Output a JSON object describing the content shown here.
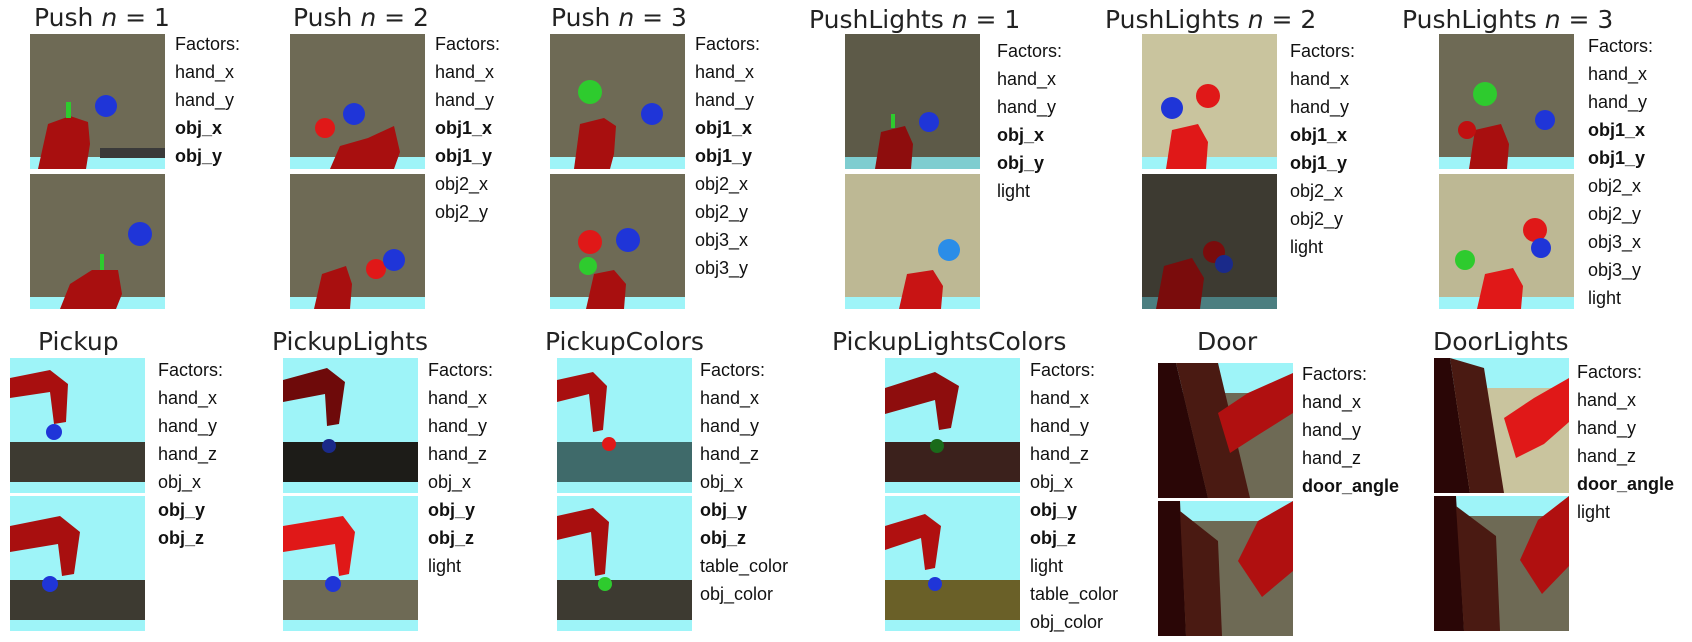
{
  "factors_label": "Factors:",
  "row1": [
    {
      "title": "Push",
      "n": "1",
      "factors": [
        {
          "t": "hand_x",
          "b": false
        },
        {
          "t": "hand_y",
          "b": false
        },
        {
          "t": "obj_x",
          "b": true
        },
        {
          "t": "obj_y",
          "b": true
        }
      ]
    },
    {
      "title": "Push",
      "n": "2",
      "factors": [
        {
          "t": "hand_x",
          "b": false
        },
        {
          "t": "hand_y",
          "b": false
        },
        {
          "t": "obj1_x",
          "b": true
        },
        {
          "t": "obj1_y",
          "b": true
        },
        {
          "t": "obj2_x",
          "b": false
        },
        {
          "t": "obj2_y",
          "b": false
        }
      ]
    },
    {
      "title": "Push",
      "n": "3",
      "factors": [
        {
          "t": "hand_x",
          "b": false
        },
        {
          "t": "hand_y",
          "b": false
        },
        {
          "t": "obj1_x",
          "b": true
        },
        {
          "t": "obj1_y",
          "b": true
        },
        {
          "t": "obj2_x",
          "b": false
        },
        {
          "t": "obj2_y",
          "b": false
        },
        {
          "t": "obj3_x",
          "b": false
        },
        {
          "t": "obj3_y",
          "b": false
        }
      ]
    },
    {
      "title": "PushLights",
      "n": "1",
      "factors": [
        {
          "t": "hand_x",
          "b": false
        },
        {
          "t": "hand_y",
          "b": false
        },
        {
          "t": "obj_x",
          "b": true
        },
        {
          "t": "obj_y",
          "b": true
        },
        {
          "t": "light",
          "b": false
        }
      ]
    },
    {
      "title": "PushLights",
      "n": "2",
      "factors": [
        {
          "t": "hand_x",
          "b": false
        },
        {
          "t": "hand_y",
          "b": false
        },
        {
          "t": "obj1_x",
          "b": true
        },
        {
          "t": "obj1_y",
          "b": true
        },
        {
          "t": "obj2_x",
          "b": false
        },
        {
          "t": "obj2_y",
          "b": false
        },
        {
          "t": "light",
          "b": false
        }
      ]
    },
    {
      "title": "PushLights",
      "n": "3",
      "factors": [
        {
          "t": "hand_x",
          "b": false
        },
        {
          "t": "hand_y",
          "b": false
        },
        {
          "t": "obj1_x",
          "b": true
        },
        {
          "t": "obj1_y",
          "b": true
        },
        {
          "t": "obj2_x",
          "b": false
        },
        {
          "t": "obj2_y",
          "b": false
        },
        {
          "t": "obj3_x",
          "b": false
        },
        {
          "t": "obj3_y",
          "b": false
        },
        {
          "t": "light",
          "b": false
        }
      ]
    }
  ],
  "row2": [
    {
      "title": "Pickup",
      "factors": [
        {
          "t": "hand_x",
          "b": false
        },
        {
          "t": "hand_y",
          "b": false
        },
        {
          "t": "hand_z",
          "b": false
        },
        {
          "t": "obj_x",
          "b": false
        },
        {
          "t": "obj_y",
          "b": true
        },
        {
          "t": "obj_z",
          "b": true
        }
      ]
    },
    {
      "title": "PickupLights",
      "factors": [
        {
          "t": "hand_x",
          "b": false
        },
        {
          "t": "hand_y",
          "b": false
        },
        {
          "t": "hand_z",
          "b": false
        },
        {
          "t": "obj_x",
          "b": false
        },
        {
          "t": "obj_y",
          "b": true
        },
        {
          "t": "obj_z",
          "b": true
        },
        {
          "t": "light",
          "b": false
        }
      ]
    },
    {
      "title": "PickupColors",
      "factors": [
        {
          "t": "hand_x",
          "b": false
        },
        {
          "t": "hand_y",
          "b": false
        },
        {
          "t": "hand_z",
          "b": false
        },
        {
          "t": "obj_x",
          "b": false
        },
        {
          "t": "obj_y",
          "b": true
        },
        {
          "t": "obj_z",
          "b": true
        },
        {
          "t": "table_color",
          "b": false
        },
        {
          "t": "obj_color",
          "b": false
        }
      ]
    },
    {
      "title": "PickupLightsColors",
      "factors": [
        {
          "t": "hand_x",
          "b": false
        },
        {
          "t": "hand_y",
          "b": false
        },
        {
          "t": "hand_z",
          "b": false
        },
        {
          "t": "obj_x",
          "b": false
        },
        {
          "t": "obj_y",
          "b": true
        },
        {
          "t": "obj_z",
          "b": true
        },
        {
          "t": "light",
          "b": false
        },
        {
          "t": "table_color",
          "b": false
        },
        {
          "t": "obj_color",
          "b": false
        }
      ]
    },
    {
      "title": "Door",
      "factors": [
        {
          "t": "hand_x",
          "b": false
        },
        {
          "t": "hand_y",
          "b": false
        },
        {
          "t": "hand_z",
          "b": false
        },
        {
          "t": "door_angle",
          "b": true
        }
      ]
    },
    {
      "title": "DoorLights",
      "factors": [
        {
          "t": "hand_x",
          "b": false
        },
        {
          "t": "hand_y",
          "b": false
        },
        {
          "t": "hand_z",
          "b": false
        },
        {
          "t": "door_angle",
          "b": true
        },
        {
          "t": "light",
          "b": false
        }
      ]
    }
  ],
  "colors": {
    "push_floor": "#6e6a55",
    "push_floor_light": "#bdb894",
    "push_floor_dark": "#3d3a31",
    "sky": "#9ef4f8",
    "robot": "#b01010",
    "obj_blue": "#1f35d8",
    "obj_red": "#e01818",
    "obj_green": "#2ecb2e"
  }
}
